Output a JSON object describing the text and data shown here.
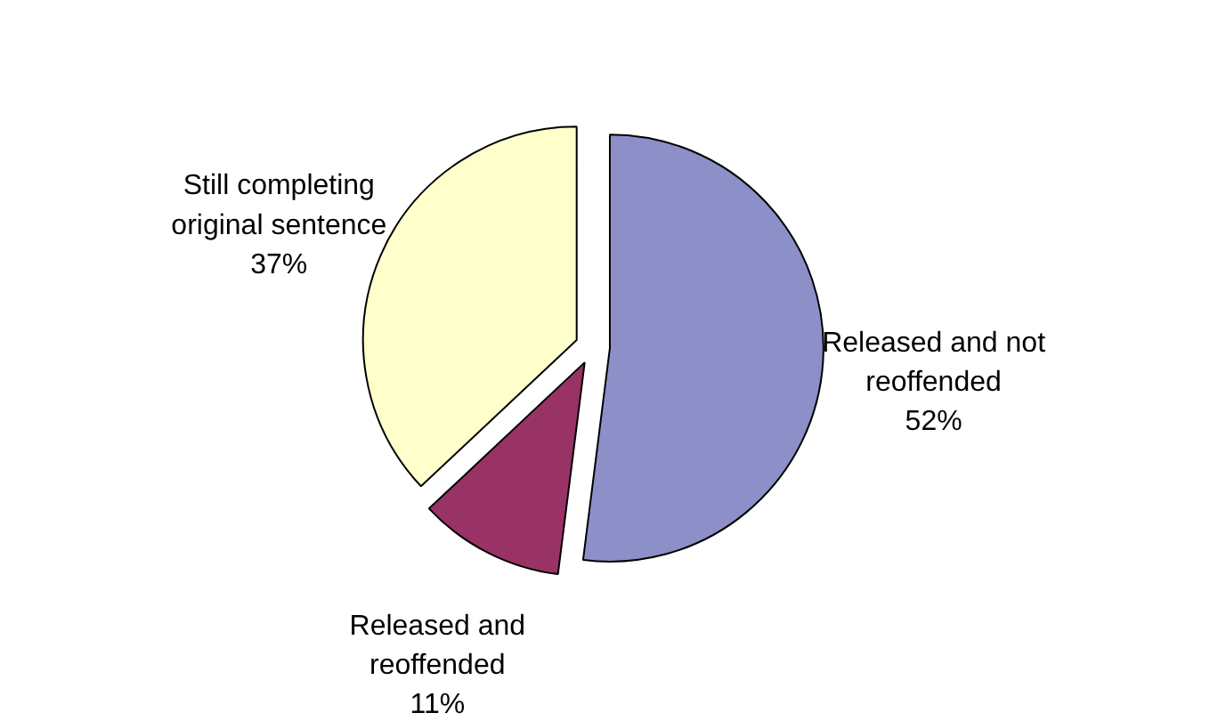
{
  "chart_data": {
    "type": "pie",
    "categories": [
      "Released and not reoffended",
      "Released and reoffended",
      "Still completing original sentence"
    ],
    "values": [
      52,
      11,
      37
    ],
    "value_labels": [
      "52%",
      "11%",
      "37%"
    ],
    "colors": [
      "#8c8fc8",
      "#993366",
      "#ffffcc"
    ]
  }
}
